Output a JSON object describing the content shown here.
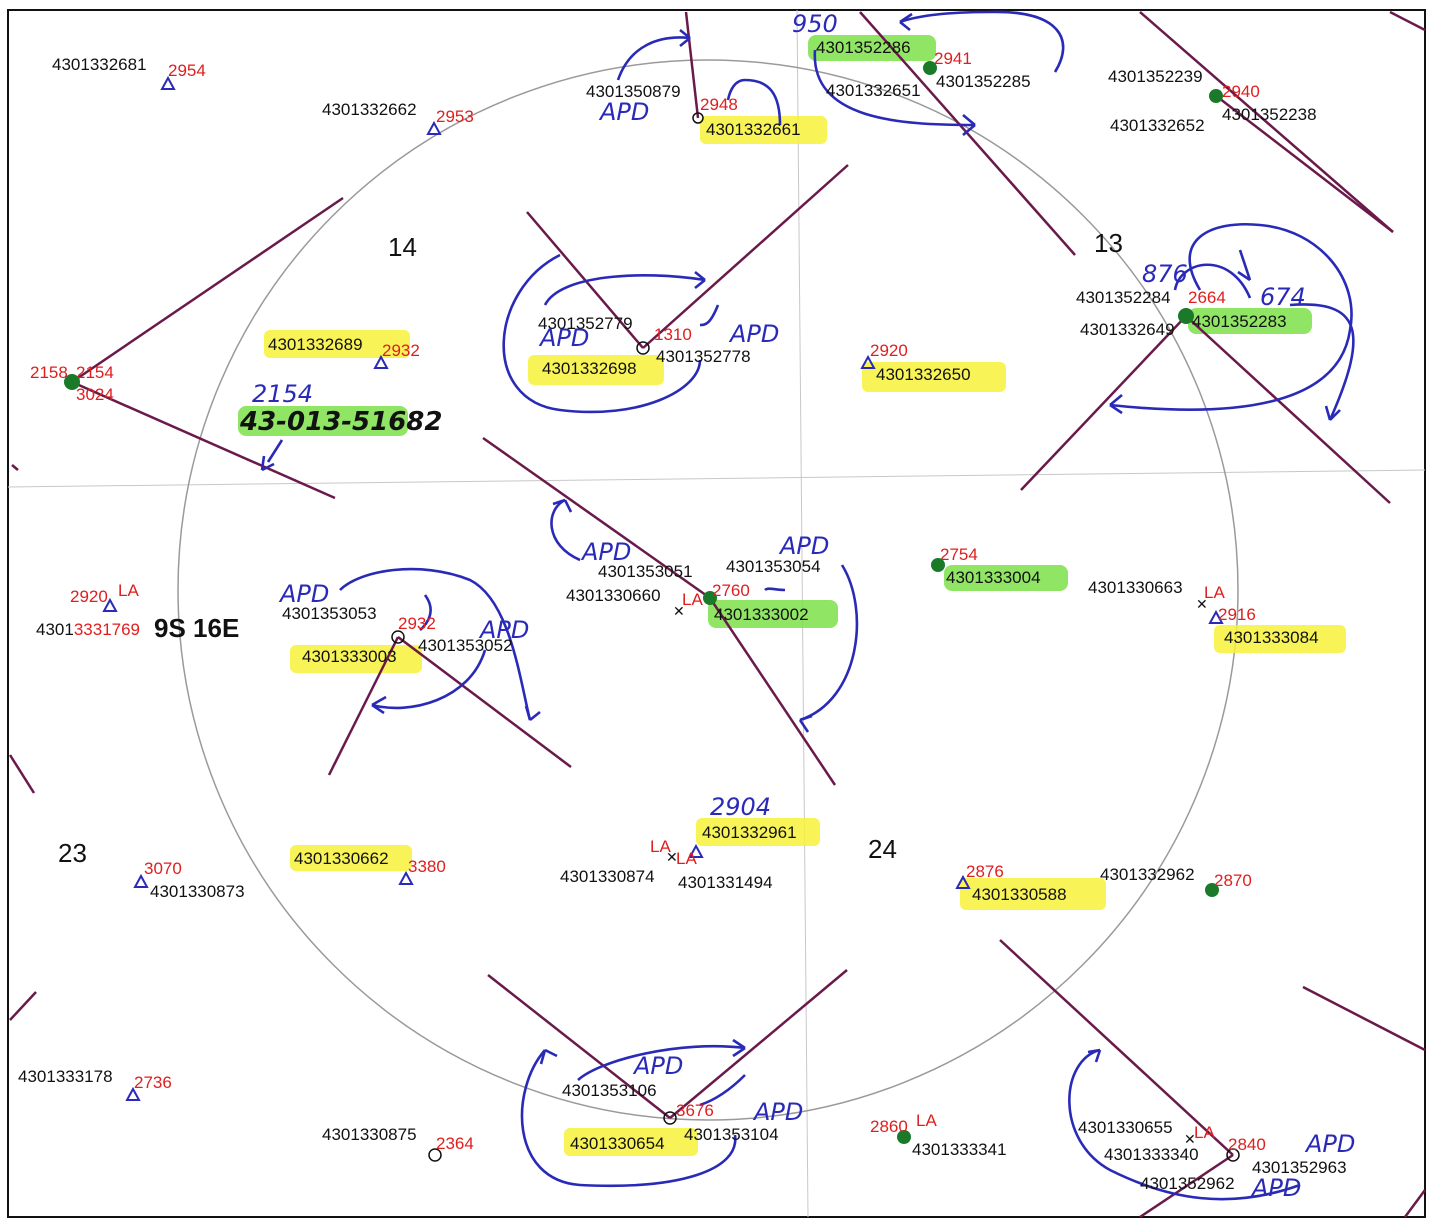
{
  "township": "9S 16E",
  "sections": {
    "s14": "14",
    "s13": "13",
    "s23": "23",
    "s24": "24"
  },
  "colors": {
    "api": "#111111",
    "num": "#e01e1e",
    "ink": "#2a2ab8",
    "directional": "#6a1a4a",
    "highlight_yellow": "#f7f23a",
    "highlight_green": "#7ee04a",
    "producing_well": "#1a7a2a"
  },
  "labels": {
    "l01": "4301332681",
    "n01": "2954",
    "l02": "4301332662",
    "n02": "2953",
    "l03": "4301350879",
    "n03": "2948",
    "h03": "APD",
    "l03b": "4301332661",
    "l04": "4301352286",
    "n04": "2941",
    "h04": "950",
    "l04b": "4301332651",
    "l04c": "4301352285",
    "l05": "4301352239",
    "n05": "2940",
    "l05b": "4301332652",
    "l05c": "4301352238",
    "l06": "4301352284",
    "n06": "2664",
    "l06b": "4301332649",
    "l06c": "4301352283",
    "h06a": "876",
    "h06b": "674",
    "l07": "4301352779",
    "n07": "1310",
    "l07b": "4301332698",
    "l07c": "4301352778",
    "h07a": "APD",
    "h07b": "APD",
    "l08": "4301332689",
    "n08": "2932",
    "n09": "2920",
    "l09": "4301332650",
    "n10a": "2158",
    "n10b": "2154",
    "n10c": "3024",
    "h11a": "2154",
    "h11b": "43-013-51682",
    "l12": "4301353051",
    "l12b": "4301353054",
    "l12c": "4301330660",
    "n12": "2760",
    "l12d": "4301333002",
    "h12a": "APD",
    "h12b": "APD",
    "la12": "LA",
    "n13": "2754",
    "l13": "4301333004",
    "l14": "4301330663",
    "la14": "LA",
    "n14": "2916",
    "l14b": "4301333084",
    "n15": "2920",
    "la15": "LA",
    "l15a": "4301",
    "l15b": "3331769",
    "l16": "4301353053",
    "n16": "2932",
    "l16b": "4301333003",
    "l16c": "4301353052",
    "h16a": "APD",
    "h16b": "APD",
    "h17": "2904",
    "l17": "4301332961",
    "la17a": "LA",
    "la17b": "LA",
    "l17b": "4301330874",
    "l17c": "4301331494",
    "n18": "3070",
    "l18": "4301330873",
    "l19": "4301330662",
    "n19": "3380",
    "n20": "2876",
    "l20": "4301330588",
    "l21": "4301332962",
    "n21": "2870",
    "l22": "4301333178",
    "n22": "2736",
    "l23": "4301330875",
    "n23": "2364",
    "l24": "4301353106",
    "n24": "3676",
    "l24b": "4301330654",
    "l24c": "4301353104",
    "h24a": "APD",
    "h24b": "APD",
    "n25": "2860",
    "la25": "LA",
    "l25": "4301333341",
    "l26": "4301330655",
    "la26": "LA",
    "n26": "2840",
    "l26b": "4301333340",
    "l26c": "4301352963",
    "l26d": "4301352962",
    "h26a": "APD",
    "h26b": "APD"
  }
}
